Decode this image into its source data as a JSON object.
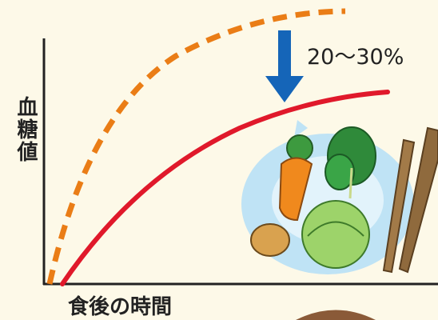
{
  "y_axis_label": "血糖値",
  "x_axis_label": "食後の時間",
  "annotation": "20〜30%"
}
